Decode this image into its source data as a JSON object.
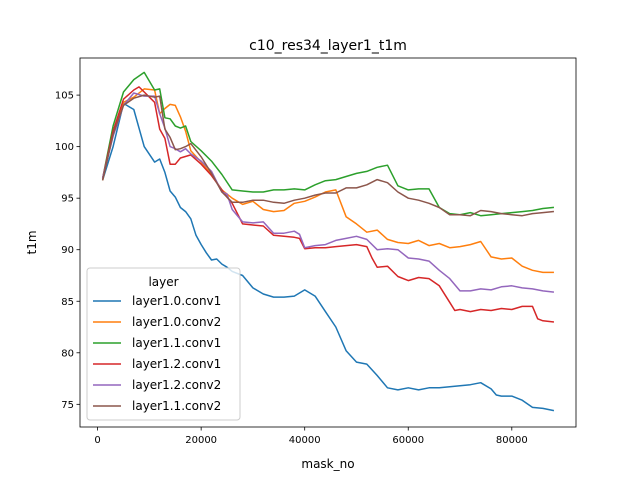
{
  "chart_data": {
    "type": "line",
    "title": "c10_res34_layer1_t1m",
    "xlabel": "mask_no",
    "ylabel": "t1m",
    "xlim": [
      -3400,
      92400
    ],
    "ylim": [
      72.8,
      108.6
    ],
    "xticks": [
      0,
      20000,
      40000,
      60000,
      80000
    ],
    "xtick_labels": [
      "0",
      "20000",
      "40000",
      "60000",
      "80000"
    ],
    "yticks": [
      75,
      80,
      85,
      90,
      95,
      100,
      105
    ],
    "ytick_labels": [
      "75",
      "80",
      "85",
      "90",
      "95",
      "100",
      "105"
    ],
    "grid": false,
    "legend": {
      "title": "layer",
      "placement": "lower-left"
    },
    "series": [
      {
        "name": "layer1.0.conv1",
        "color": "#1f77b4",
        "x": [
          1000,
          3000,
          5000,
          7000,
          9000,
          11000,
          12000,
          13000,
          14000,
          15000,
          16000,
          17000,
          18000,
          19000,
          20000,
          21000,
          22000,
          23000,
          24000,
          25000,
          26000,
          28000,
          30000,
          32000,
          34000,
          36000,
          38000,
          40000,
          42000,
          44000,
          46000,
          48000,
          50000,
          52000,
          54000,
          56000,
          58000,
          60000,
          62000,
          64000,
          66000,
          68000,
          70000,
          72000,
          74000,
          76000,
          77000,
          78000,
          80000,
          82000,
          84000,
          86000,
          88000
        ],
        "y": [
          96.8,
          100.0,
          104.2,
          103.6,
          100.0,
          98.5,
          98.8,
          97.5,
          95.7,
          95.1,
          94.1,
          93.7,
          93.0,
          91.4,
          90.5,
          89.7,
          89.0,
          89.1,
          88.6,
          88.3,
          87.9,
          87.5,
          86.3,
          85.7,
          85.4,
          85.4,
          85.5,
          86.1,
          85.5,
          84.0,
          82.5,
          80.2,
          79.1,
          78.9,
          77.8,
          76.6,
          76.4,
          76.6,
          76.4,
          76.6,
          76.6,
          76.7,
          76.8,
          76.9,
          77.1,
          76.5,
          75.9,
          75.8,
          75.8,
          75.4,
          74.7,
          74.6,
          74.4
        ]
      },
      {
        "name": "layer1.0.conv2",
        "color": "#ff7f0e",
        "x": [
          1000,
          3000,
          5000,
          7000,
          9000,
          11000,
          12000,
          13000,
          14000,
          15000,
          16000,
          17000,
          18000,
          20000,
          22000,
          24000,
          26000,
          28000,
          30000,
          32000,
          34000,
          36000,
          38000,
          40000,
          42000,
          44000,
          46000,
          48000,
          50000,
          52000,
          54000,
          56000,
          58000,
          60000,
          62000,
          64000,
          66000,
          68000,
          70000,
          72000,
          74000,
          76000,
          78000,
          80000,
          82000,
          84000,
          86000,
          88000
        ],
        "y": [
          96.8,
          101.5,
          104.3,
          104.8,
          105.6,
          105.5,
          103.2,
          103.7,
          104.1,
          104.0,
          102.9,
          101.5,
          99.6,
          98.5,
          97.3,
          95.8,
          95.0,
          94.4,
          94.7,
          93.9,
          93.7,
          93.8,
          94.5,
          94.7,
          95.1,
          95.6,
          95.8,
          93.2,
          92.5,
          91.7,
          91.9,
          91.0,
          90.7,
          90.6,
          90.9,
          90.4,
          90.6,
          90.2,
          90.3,
          90.5,
          90.8,
          89.3,
          89.1,
          89.2,
          88.4,
          88.0,
          87.8,
          87.8
        ]
      },
      {
        "name": "layer1.1.conv1",
        "color": "#2ca02c",
        "x": [
          1000,
          3000,
          5000,
          7000,
          9000,
          11000,
          12000,
          13000,
          14000,
          15000,
          16000,
          17000,
          18000,
          20000,
          22000,
          24000,
          26000,
          28000,
          30000,
          32000,
          34000,
          36000,
          38000,
          40000,
          42000,
          44000,
          46000,
          48000,
          50000,
          52000,
          54000,
          56000,
          58000,
          60000,
          62000,
          64000,
          66000,
          68000,
          70000,
          72000,
          74000,
          76000,
          78000,
          80000,
          82000,
          84000,
          86000,
          88000
        ],
        "y": [
          97.0,
          102.0,
          105.3,
          106.5,
          107.2,
          105.5,
          105.6,
          102.8,
          102.7,
          102.0,
          101.8,
          102.0,
          100.5,
          99.6,
          98.6,
          97.3,
          95.8,
          95.7,
          95.6,
          95.6,
          95.8,
          95.8,
          95.9,
          95.8,
          96.3,
          96.7,
          96.8,
          97.1,
          97.4,
          97.6,
          98.0,
          98.2,
          96.2,
          95.8,
          95.9,
          95.9,
          94.1,
          93.5,
          93.4,
          93.6,
          93.3,
          93.4,
          93.5,
          93.6,
          93.7,
          93.8,
          94.0,
          94.1
        ]
      },
      {
        "name": "layer1.2.conv1",
        "color": "#d62728",
        "x": [
          1000,
          3000,
          5000,
          7000,
          8000,
          9000,
          11000,
          12000,
          13000,
          14000,
          15000,
          16000,
          18000,
          20000,
          22000,
          24000,
          25000,
          26000,
          28000,
          30000,
          32000,
          34000,
          36000,
          38000,
          39000,
          40000,
          42000,
          44000,
          46000,
          48000,
          50000,
          52000,
          53000,
          54000,
          56000,
          58000,
          60000,
          62000,
          64000,
          66000,
          68000,
          69000,
          70000,
          72000,
          74000,
          76000,
          78000,
          80000,
          82000,
          84000,
          85000,
          86000,
          88000
        ],
        "y": [
          97.0,
          101.5,
          104.6,
          105.5,
          105.8,
          105.3,
          104.3,
          101.7,
          100.8,
          98.3,
          98.3,
          98.9,
          99.2,
          98.3,
          97.2,
          95.8,
          95.1,
          94.5,
          92.5,
          92.4,
          92.3,
          91.4,
          91.3,
          91.2,
          91.1,
          90.1,
          90.2,
          90.2,
          90.3,
          90.4,
          90.5,
          90.3,
          89.2,
          88.3,
          88.4,
          87.4,
          87.0,
          87.3,
          87.2,
          86.5,
          84.9,
          84.1,
          84.2,
          84.0,
          84.2,
          84.1,
          84.3,
          84.2,
          84.5,
          84.5,
          83.3,
          83.1,
          83.0
        ]
      },
      {
        "name": "layer1.2.conv2",
        "color": "#9467bd",
        "x": [
          1000,
          3000,
          5000,
          7000,
          9000,
          11000,
          12000,
          13000,
          14000,
          15000,
          16000,
          17000,
          18000,
          20000,
          22000,
          24000,
          25000,
          26000,
          28000,
          30000,
          32000,
          34000,
          36000,
          38000,
          39000,
          40000,
          42000,
          44000,
          46000,
          48000,
          50000,
          52000,
          54000,
          56000,
          58000,
          60000,
          62000,
          64000,
          66000,
          68000,
          70000,
          72000,
          74000,
          76000,
          78000,
          80000,
          82000,
          84000,
          86000,
          88000
        ],
        "y": [
          97.0,
          101.0,
          104.0,
          105.2,
          104.9,
          104.9,
          103.2,
          101.8,
          100.0,
          99.8,
          99.5,
          99.8,
          99.3,
          98.6,
          97.6,
          95.6,
          95.4,
          93.9,
          92.7,
          92.6,
          92.7,
          91.6,
          91.6,
          91.8,
          91.5,
          90.2,
          90.4,
          90.5,
          90.9,
          91.1,
          91.3,
          91.0,
          90.0,
          90.1,
          90.0,
          89.2,
          89.1,
          88.9,
          88.0,
          87.2,
          86.0,
          86.0,
          86.2,
          86.1,
          86.4,
          86.5,
          86.3,
          86.2,
          86.0,
          85.9
        ]
      },
      {
        "name": "layer1.1.conv2",
        "color": "#8c564b",
        "x": [
          1000,
          3000,
          5000,
          7000,
          9000,
          11000,
          12000,
          13000,
          14000,
          15000,
          16000,
          17000,
          18000,
          20000,
          22000,
          24000,
          26000,
          28000,
          30000,
          32000,
          34000,
          36000,
          38000,
          40000,
          42000,
          44000,
          46000,
          48000,
          50000,
          52000,
          54000,
          56000,
          58000,
          60000,
          62000,
          64000,
          66000,
          68000,
          70000,
          72000,
          74000,
          76000,
          78000,
          80000,
          82000,
          84000,
          86000,
          88000
        ],
        "y": [
          96.8,
          101.2,
          104.0,
          104.7,
          105.0,
          104.8,
          104.9,
          101.7,
          100.9,
          99.7,
          99.8,
          100.0,
          100.3,
          99.0,
          97.4,
          95.6,
          94.6,
          94.6,
          94.8,
          94.8,
          94.6,
          94.5,
          94.8,
          95.0,
          95.3,
          95.5,
          95.5,
          96.0,
          96.0,
          96.3,
          96.8,
          96.5,
          95.6,
          95.0,
          94.8,
          94.5,
          94.1,
          93.4,
          93.4,
          93.3,
          93.8,
          93.7,
          93.5,
          93.4,
          93.3,
          93.5,
          93.6,
          93.7
        ]
      }
    ]
  }
}
